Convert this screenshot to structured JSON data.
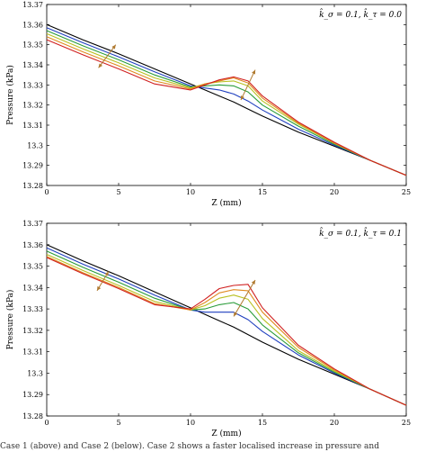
{
  "chart_data": [
    {
      "type": "line",
      "annotation": "k̂_σ = 0.1, k̂_τ = 0.0",
      "xlabel": "Z (mm)",
      "ylabel": "Pressure (kPa)",
      "xlim": [
        0,
        25
      ],
      "ylim": [
        13.28,
        13.37
      ],
      "xticks": [
        0,
        5,
        10,
        15,
        20,
        25
      ],
      "yticks": [
        13.28,
        13.29,
        13.3,
        13.31,
        13.32,
        13.33,
        13.34,
        13.35,
        13.36,
        13.37
      ],
      "ytick_labels": [
        "13.28",
        "13.29",
        "13.3",
        "13.31",
        "13.32",
        "13.33",
        "13.34",
        "13.35",
        "13.36",
        "13.37"
      ],
      "grid": false,
      "x": [
        0,
        2.5,
        5,
        7.5,
        10,
        11,
        12,
        13,
        14,
        15,
        17.5,
        20,
        22.5,
        25
      ],
      "series": [
        {
          "color": "#000000",
          "values": [
            13.36,
            13.3525,
            13.3455,
            13.338,
            13.3305,
            13.3275,
            13.3245,
            13.3215,
            13.318,
            13.3145,
            13.3065,
            13.2995,
            13.2925,
            13.285
          ]
        },
        {
          "color": "#1f3fbf",
          "values": [
            13.3585,
            13.351,
            13.344,
            13.3365,
            13.3295,
            13.3285,
            13.3275,
            13.3255,
            13.322,
            13.3175,
            13.308,
            13.3,
            13.2925,
            13.285
          ]
        },
        {
          "color": "#2a9c3a",
          "values": [
            13.357,
            13.3495,
            13.3425,
            13.335,
            13.329,
            13.3295,
            13.33,
            13.3295,
            13.3265,
            13.32,
            13.3095,
            13.3005,
            13.2925,
            13.285
          ]
        },
        {
          "color": "#b8c020",
          "values": [
            13.3555,
            13.348,
            13.341,
            13.3335,
            13.3285,
            13.3305,
            13.3315,
            13.332,
            13.3295,
            13.322,
            13.3105,
            13.301,
            13.2925,
            13.285
          ]
        },
        {
          "color": "#e08a20",
          "values": [
            13.354,
            13.3465,
            13.3395,
            13.332,
            13.328,
            13.3305,
            13.332,
            13.3335,
            13.331,
            13.3235,
            13.311,
            13.301,
            13.2925,
            13.285
          ]
        },
        {
          "color": "#d02020",
          "values": [
            13.3525,
            13.345,
            13.338,
            13.3305,
            13.3275,
            13.33,
            13.3325,
            13.334,
            13.332,
            13.3245,
            13.3115,
            13.3015,
            13.2925,
            13.285
          ]
        }
      ]
    },
    {
      "type": "line",
      "annotation": "k̂_σ = 0.1, k̂_τ = 0.1",
      "xlabel": "Z (mm)",
      "ylabel": "Pressure (kPa)",
      "xlim": [
        0,
        25
      ],
      "ylim": [
        13.28,
        13.37
      ],
      "xticks": [
        0,
        5,
        10,
        15,
        20,
        25
      ],
      "yticks": [
        13.28,
        13.29,
        13.3,
        13.31,
        13.32,
        13.33,
        13.34,
        13.35,
        13.36,
        13.37
      ],
      "ytick_labels": [
        "13.28",
        "13.29",
        "13.3",
        "13.31",
        "13.32",
        "13.33",
        "13.34",
        "13.35",
        "13.36",
        "13.37"
      ],
      "grid": false,
      "x": [
        0,
        2.5,
        5,
        7.5,
        10,
        11,
        12,
        13,
        14,
        15,
        17.5,
        20,
        22.5,
        25
      ],
      "series": [
        {
          "color": "#000000",
          "values": [
            13.36,
            13.3525,
            13.3455,
            13.338,
            13.3305,
            13.3275,
            13.3245,
            13.3215,
            13.318,
            13.3145,
            13.3065,
            13.2995,
            13.2925,
            13.285
          ]
        },
        {
          "color": "#1f3fbf",
          "values": [
            13.3585,
            13.351,
            13.344,
            13.3365,
            13.3295,
            13.3285,
            13.3285,
            13.3285,
            13.325,
            13.3195,
            13.3085,
            13.3,
            13.2925,
            13.285
          ]
        },
        {
          "color": "#2a9c3a",
          "values": [
            13.357,
            13.3495,
            13.3425,
            13.335,
            13.3295,
            13.33,
            13.332,
            13.333,
            13.33,
            13.3225,
            13.3095,
            13.3005,
            13.2925,
            13.285
          ]
        },
        {
          "color": "#b8c020",
          "values": [
            13.3555,
            13.348,
            13.341,
            13.3335,
            13.3295,
            13.3315,
            13.335,
            13.3365,
            13.3345,
            13.3255,
            13.3105,
            13.301,
            13.2925,
            13.285
          ]
        },
        {
          "color": "#e08a20",
          "values": [
            13.3545,
            13.347,
            13.34,
            13.3325,
            13.3295,
            13.333,
            13.3375,
            13.339,
            13.3385,
            13.3285,
            13.312,
            13.3015,
            13.2925,
            13.285
          ]
        },
        {
          "color": "#d02020",
          "values": [
            13.354,
            13.3465,
            13.3395,
            13.332,
            13.33,
            13.3345,
            13.3395,
            13.341,
            13.3415,
            13.3305,
            13.313,
            13.302,
            13.2925,
            13.285
          ]
        }
      ]
    }
  ],
  "caption_fragment": "Case 1 (above) and Case 2 (below). Case 2 shows a faster localised increase in pressure and"
}
